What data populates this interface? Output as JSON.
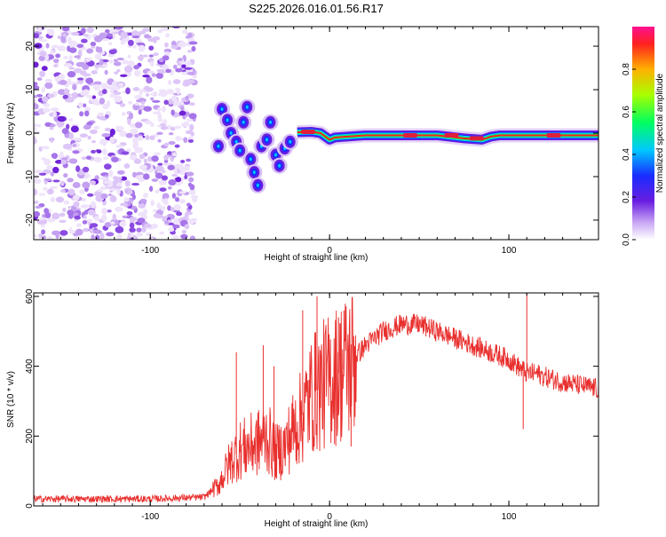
{
  "title": "S225.2026.016.01.56.R17",
  "colors": {
    "snr_line": "#e8302e",
    "spectrum_noise": "#7a2cd8",
    "spectrum_ridge": "#e0203a"
  },
  "chart_data": [
    {
      "type": "heatmap",
      "xlabel": "Height of straight line (km)",
      "ylabel": "Frequency (Hz)",
      "xlim": [
        -165,
        150
      ],
      "ylim": [
        -24.5,
        24.5
      ],
      "xticks": [
        -100,
        0,
        100
      ],
      "xtick_labels": [
        "-100",
        "0",
        "100"
      ],
      "yticks": [
        -20,
        -10,
        0,
        10,
        20
      ],
      "ytick_labels": [
        "-20",
        "-10",
        "0",
        "10",
        "20"
      ],
      "colorbar": {
        "label": "Normalized spectral amplitude",
        "range": [
          0,
          1
        ],
        "ticks": [
          0.0,
          0.2,
          0.4,
          0.6,
          0.8
        ],
        "tick_labels": [
          "0.0",
          "0.2",
          "0.4",
          "0.6",
          "0.8"
        ]
      },
      "ridge": {
        "x": [
          -18,
          -10,
          -5,
          0,
          3,
          10,
          20,
          40,
          60,
          75,
          85,
          90,
          95,
          105,
          120,
          150
        ],
        "y": [
          0.2,
          0.3,
          0.0,
          -1.5,
          -1.0,
          -0.8,
          -0.5,
          -0.5,
          -0.5,
          -1.2,
          -1.5,
          -0.8,
          -0.5,
          -0.5,
          -0.5,
          -0.5
        ]
      },
      "scatter_blobs": [
        {
          "x": -60,
          "y": 5.5
        },
        {
          "x": -57,
          "y": 3
        },
        {
          "x": -55,
          "y": 0
        },
        {
          "x": -52,
          "y": -2
        },
        {
          "x": -50,
          "y": -4
        },
        {
          "x": -48,
          "y": 2.5
        },
        {
          "x": -46,
          "y": 6
        },
        {
          "x": -44,
          "y": -6
        },
        {
          "x": -42,
          "y": -9
        },
        {
          "x": -40,
          "y": -12
        },
        {
          "x": -38,
          "y": -3
        },
        {
          "x": -35,
          "y": -1.5
        },
        {
          "x": -33,
          "y": 2.5
        },
        {
          "x": -30,
          "y": -5
        },
        {
          "x": -28,
          "y": -7.5
        },
        {
          "x": -25,
          "y": -3.5
        },
        {
          "x": -22,
          "y": -2
        },
        {
          "x": -62,
          "y": -3
        }
      ]
    },
    {
      "type": "line",
      "xlabel": "Height of straight line (km)",
      "ylabel": "SNR (10 * v/v)",
      "xlim": [
        -165,
        150
      ],
      "ylim": [
        0,
        610
      ],
      "xticks": [
        -100,
        0,
        100
      ],
      "xtick_labels": [
        "-100",
        "0",
        "100"
      ],
      "yticks": [
        0,
        200,
        400,
        600
      ],
      "ytick_labels": [
        "0",
        "200",
        "400",
        "600"
      ],
      "x": [
        -165,
        -100,
        -70,
        -62,
        -55,
        -50,
        -45,
        -40,
        -35,
        -30,
        -25,
        -20,
        -15,
        -10,
        -5,
        0,
        5,
        10,
        20,
        30,
        40,
        50,
        60,
        70,
        80,
        90,
        100,
        105,
        110,
        115,
        120,
        130,
        140,
        150
      ],
      "y": [
        20,
        20,
        25,
        60,
        130,
        160,
        170,
        180,
        200,
        150,
        170,
        220,
        260,
        320,
        340,
        360,
        380,
        400,
        460,
        500,
        520,
        520,
        500,
        480,
        460,
        440,
        420,
        400,
        380,
        380,
        370,
        355,
        345,
        335
      ],
      "spikes": [
        {
          "x": -52,
          "y": 440
        },
        {
          "x": -37,
          "y": 460
        },
        {
          "x": -31,
          "y": 400
        },
        {
          "x": -15,
          "y": 560
        },
        {
          "x": -7,
          "y": 600
        },
        {
          "x": 8,
          "y": 560
        },
        {
          "x": 110,
          "y": 620
        },
        {
          "x": 108,
          "y": 220
        },
        {
          "x": 12,
          "y": 170
        },
        {
          "x": 5,
          "y": 540
        }
      ]
    }
  ]
}
